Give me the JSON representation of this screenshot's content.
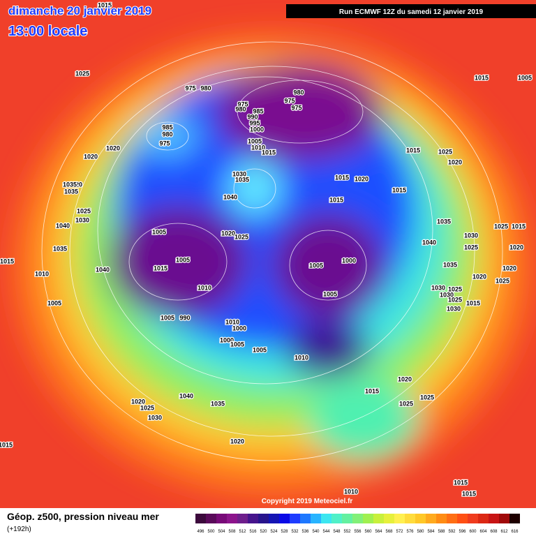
{
  "header": {
    "date": "dimanche 20 janvier 2019",
    "time": "13:00 locale",
    "run": "Run ECMWF 12Z du samedi 12 janvier 2019"
  },
  "copyright": "Copyright 2019 Meteociel.fr",
  "footer": {
    "title": "Géop. z500, pression niveau mer",
    "lead": "(+192h)"
  },
  "scale": {
    "labels": [
      "496",
      "500",
      "504",
      "508",
      "512",
      "516",
      "520",
      "524",
      "528",
      "532",
      "536",
      "540",
      "544",
      "548",
      "552",
      "556",
      "560",
      "564",
      "568",
      "572",
      "576",
      "580",
      "584",
      "588",
      "592",
      "596",
      "600",
      "604",
      "608",
      "612",
      "616"
    ],
    "colors": [
      "#3c0a3c",
      "#5a0a5a",
      "#780a78",
      "#8c148c",
      "#6e1e8c",
      "#46148c",
      "#28148c",
      "#1414b4",
      "#0a0ae6",
      "#1e3cff",
      "#1e78ff",
      "#28b4ff",
      "#3ce6f0",
      "#50f0c8",
      "#64f0a0",
      "#82f078",
      "#a0f050",
      "#c8f03c",
      "#e6f03c",
      "#fff050",
      "#ffdc3c",
      "#ffc828",
      "#ffaa1e",
      "#ff8c14",
      "#ff6e14",
      "#ff5014",
      "#f03c1e",
      "#dc2814",
      "#c81414",
      "#a00a0a",
      "#1e0000"
    ]
  },
  "pressure_labels": [
    "1015",
    "1025",
    "975",
    "980",
    "975",
    "980",
    "985",
    "990",
    "995",
    "1000",
    "985",
    "980",
    "975",
    "980",
    "975",
    "975",
    "1005",
    "1010",
    "1015",
    "1020",
    "1020",
    "1030",
    "1035",
    "1040",
    "1015",
    "1020",
    "1015",
    "1015",
    "1015",
    "1025",
    "1020",
    "1015",
    "1005",
    "1035",
    "1040",
    "1030",
    "1025",
    "1025",
    "1015",
    "1020",
    "1020",
    "1025",
    "1035",
    "1020",
    "1030",
    "1025",
    "1030",
    "1025",
    "1015",
    "1030",
    "1005",
    "1020",
    "1025",
    "1005",
    "1015",
    "1010",
    "1005",
    "1000",
    "1005",
    "1040",
    "1035",
    "1040",
    "1025",
    "1030",
    "1035",
    "1020",
    "1035",
    "1015",
    "1010",
    "1005",
    "1005",
    "990",
    "1010",
    "1000",
    "1000",
    "1005",
    "1005",
    "1010",
    "1020",
    "1015",
    "1025",
    "1025",
    "1040",
    "1035",
    "1020",
    "1025",
    "1030",
    "1015",
    "1020",
    "1010",
    "1015",
    "1015"
  ]
}
